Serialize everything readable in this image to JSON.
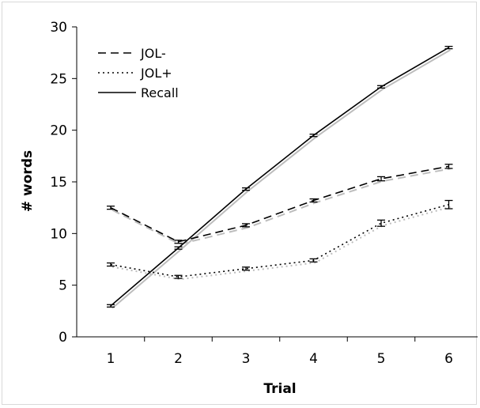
{
  "chart_data": {
    "type": "line",
    "title": "",
    "xlabel": "Trial",
    "ylabel": "# words",
    "x": [
      1,
      2,
      3,
      4,
      5,
      6
    ],
    "xticks": [
      "1",
      "2",
      "3",
      "4",
      "5",
      "6"
    ],
    "ylim": [
      0,
      30
    ],
    "yticks": [
      "0",
      "5",
      "10",
      "15",
      "20",
      "25",
      "30"
    ],
    "ytick_values": [
      0,
      5,
      10,
      15,
      20,
      25,
      30
    ],
    "grid": false,
    "legend_position": "top-left",
    "series": [
      {
        "name": "JOL-",
        "style": "dashed",
        "color": "#000000",
        "values": [
          12.5,
          9.2,
          10.8,
          13.2,
          15.3,
          16.5
        ],
        "errors": [
          0.15,
          0.15,
          0.15,
          0.15,
          0.2,
          0.2
        ]
      },
      {
        "name": "JOL+",
        "style": "dotted",
        "color": "#000000",
        "values": [
          7.0,
          5.8,
          6.6,
          7.4,
          11.0,
          12.8
        ],
        "errors": [
          0.15,
          0.15,
          0.15,
          0.15,
          0.3,
          0.4
        ]
      },
      {
        "name": "Recall",
        "style": "solid",
        "color": "#000000",
        "values": [
          3.0,
          8.6,
          14.3,
          19.5,
          24.2,
          28.0
        ],
        "errors": [
          0.05,
          0.1,
          0.1,
          0.1,
          0.1,
          0.1
        ]
      }
    ]
  }
}
